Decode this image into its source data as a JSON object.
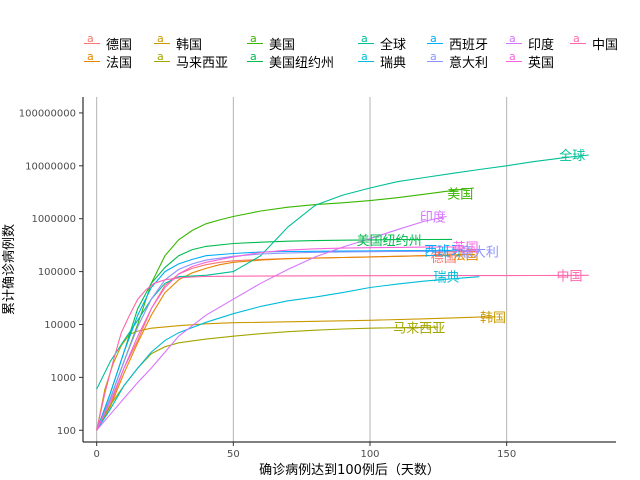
{
  "chart_data": {
    "type": "line",
    "title": "",
    "xlabel": "确诊病例达到100例后（天数）",
    "ylabel": "累计确诊病例数",
    "xlim": [
      -5,
      190
    ],
    "ylim": [
      60,
      200000000
    ],
    "yscale": "log",
    "x_ticks": [
      0,
      50,
      100,
      150
    ],
    "x_tick_labels": [
      "0",
      "50",
      "100",
      "150"
    ],
    "y_ticks": [
      100,
      1000,
      10000,
      100000,
      1000000,
      10000000,
      100000000
    ],
    "y_tick_labels": [
      "100",
      "1000",
      "10000",
      "100000",
      "1000000",
      "10000000",
      "100000000"
    ],
    "grid": "vertical-major",
    "legend_position": "top",
    "series": [
      {
        "name": "德国",
        "color": "#F8766D",
        "label_x": 127,
        "label_y": 190000,
        "points": [
          [
            0,
            100
          ],
          [
            5,
            300
          ],
          [
            10,
            1500
          ],
          [
            15,
            5000
          ],
          [
            20,
            20000
          ],
          [
            25,
            55000
          ],
          [
            30,
            90000
          ],
          [
            35,
            115000
          ],
          [
            40,
            135000
          ],
          [
            45,
            150000
          ],
          [
            50,
            160000
          ],
          [
            60,
            170000
          ],
          [
            70,
            176000
          ],
          [
            80,
            180000
          ],
          [
            90,
            185000
          ],
          [
            100,
            190000
          ],
          [
            110,
            195000
          ],
          [
            120,
            200000
          ],
          [
            127,
            205000
          ]
        ]
      },
      {
        "name": "法国",
        "color": "#E58700",
        "label_x": 135,
        "label_y": 210000,
        "points": [
          [
            0,
            100
          ],
          [
            5,
            280
          ],
          [
            10,
            1200
          ],
          [
            15,
            4500
          ],
          [
            20,
            15000
          ],
          [
            25,
            40000
          ],
          [
            30,
            70000
          ],
          [
            35,
            95000
          ],
          [
            40,
            115000
          ],
          [
            45,
            135000
          ],
          [
            50,
            150000
          ],
          [
            60,
            165000
          ],
          [
            70,
            175000
          ],
          [
            80,
            180000
          ],
          [
            90,
            185000
          ],
          [
            100,
            190000
          ],
          [
            110,
            195000
          ],
          [
            120,
            200000
          ],
          [
            130,
            205000
          ],
          [
            138,
            210000
          ]
        ]
      },
      {
        "name": "韩国",
        "color": "#C99800",
        "label_x": 145,
        "label_y": 14000,
        "points": [
          [
            0,
            100
          ],
          [
            3,
            600
          ],
          [
            6,
            1800
          ],
          [
            9,
            4000
          ],
          [
            12,
            6500
          ],
          [
            15,
            7500
          ],
          [
            20,
            8500
          ],
          [
            30,
            9500
          ],
          [
            40,
            10300
          ],
          [
            50,
            10800
          ],
          [
            60,
            11000
          ],
          [
            80,
            11500
          ],
          [
            100,
            12000
          ],
          [
            120,
            12800
          ],
          [
            140,
            13800
          ],
          [
            146,
            14000
          ]
        ]
      },
      {
        "name": "马来西亚",
        "color": "#A3A500",
        "label_x": 118,
        "label_y": 8800,
        "points": [
          [
            0,
            100
          ],
          [
            5,
            300
          ],
          [
            10,
            700
          ],
          [
            15,
            1500
          ],
          [
            20,
            2800
          ],
          [
            25,
            3800
          ],
          [
            30,
            4500
          ],
          [
            40,
            5300
          ],
          [
            50,
            6000
          ],
          [
            60,
            6700
          ],
          [
            70,
            7300
          ],
          [
            80,
            7800
          ],
          [
            90,
            8200
          ],
          [
            100,
            8500
          ],
          [
            110,
            8700
          ],
          [
            125,
            8900
          ]
        ]
      },
      {
        "name": "美国",
        "color": "#39B600",
        "label_x": 133,
        "label_y": 3000000,
        "points": [
          [
            0,
            100
          ],
          [
            5,
            400
          ],
          [
            10,
            2000
          ],
          [
            15,
            10000
          ],
          [
            20,
            60000
          ],
          [
            25,
            200000
          ],
          [
            30,
            400000
          ],
          [
            35,
            600000
          ],
          [
            40,
            800000
          ],
          [
            45,
            950000
          ],
          [
            50,
            1100000
          ],
          [
            60,
            1400000
          ],
          [
            70,
            1650000
          ],
          [
            80,
            1850000
          ],
          [
            90,
            2000000
          ],
          [
            100,
            2200000
          ],
          [
            110,
            2500000
          ],
          [
            120,
            2900000
          ],
          [
            130,
            3400000
          ],
          [
            138,
            3800000
          ]
        ]
      },
      {
        "name": "美国纽约州",
        "color": "#00BB4E",
        "label_x": 107,
        "label_y": 400000,
        "points": [
          [
            0,
            100
          ],
          [
            5,
            500
          ],
          [
            10,
            3000
          ],
          [
            15,
            20000
          ],
          [
            20,
            60000
          ],
          [
            25,
            120000
          ],
          [
            30,
            200000
          ],
          [
            35,
            260000
          ],
          [
            40,
            300000
          ],
          [
            50,
            340000
          ],
          [
            60,
            360000
          ],
          [
            70,
            375000
          ],
          [
            80,
            385000
          ],
          [
            90,
            392000
          ],
          [
            100,
            398000
          ],
          [
            110,
            402000
          ],
          [
            120,
            405000
          ],
          [
            130,
            407000
          ]
        ]
      },
      {
        "name": "全球",
        "color": "#00BF96",
        "label_x": 174,
        "label_y": 16000000,
        "points": [
          [
            0,
            600
          ],
          [
            5,
            2000
          ],
          [
            10,
            5000
          ],
          [
            15,
            12000
          ],
          [
            20,
            30000
          ],
          [
            25,
            60000
          ],
          [
            30,
            80000
          ],
          [
            40,
            85000
          ],
          [
            50,
            100000
          ],
          [
            60,
            200000
          ],
          [
            70,
            700000
          ],
          [
            80,
            1800000
          ],
          [
            90,
            2800000
          ],
          [
            100,
            3800000
          ],
          [
            110,
            5000000
          ],
          [
            120,
            6000000
          ],
          [
            130,
            7200000
          ],
          [
            140,
            8500000
          ],
          [
            150,
            10000000
          ],
          [
            160,
            12000000
          ],
          [
            170,
            14000000
          ],
          [
            180,
            16000000
          ]
        ]
      },
      {
        "name": "瑞典",
        "color": "#00BCD8",
        "label_x": 128,
        "label_y": 80000,
        "points": [
          [
            0,
            100
          ],
          [
            5,
            250
          ],
          [
            10,
            700
          ],
          [
            15,
            1500
          ],
          [
            20,
            3000
          ],
          [
            25,
            5000
          ],
          [
            30,
            7000
          ],
          [
            40,
            11000
          ],
          [
            50,
            16000
          ],
          [
            60,
            22000
          ],
          [
            70,
            28000
          ],
          [
            80,
            33000
          ],
          [
            90,
            40000
          ],
          [
            100,
            50000
          ],
          [
            110,
            58000
          ],
          [
            120,
            66000
          ],
          [
            130,
            73000
          ],
          [
            140,
            80000
          ]
        ]
      },
      {
        "name": "西班牙",
        "color": "#00ADFA",
        "label_x": 127,
        "label_y": 250000,
        "points": [
          [
            0,
            100
          ],
          [
            5,
            500
          ],
          [
            10,
            3000
          ],
          [
            15,
            15000
          ],
          [
            20,
            50000
          ],
          [
            25,
            100000
          ],
          [
            30,
            140000
          ],
          [
            35,
            170000
          ],
          [
            40,
            200000
          ],
          [
            50,
            220000
          ],
          [
            60,
            235000
          ],
          [
            70,
            240000
          ],
          [
            80,
            242000
          ],
          [
            90,
            244000
          ],
          [
            100,
            246000
          ],
          [
            110,
            248000
          ],
          [
            120,
            250000
          ],
          [
            130,
            252000
          ]
        ]
      },
      {
        "name": "意大利",
        "color": "#8B93FF",
        "label_x": 140,
        "label_y": 240000,
        "points": [
          [
            0,
            100
          ],
          [
            5,
            400
          ],
          [
            10,
            2000
          ],
          [
            15,
            9000
          ],
          [
            20,
            30000
          ],
          [
            25,
            70000
          ],
          [
            30,
            110000
          ],
          [
            35,
            140000
          ],
          [
            40,
            165000
          ],
          [
            50,
            195000
          ],
          [
            60,
            215000
          ],
          [
            70,
            225000
          ],
          [
            80,
            232000
          ],
          [
            90,
            236000
          ],
          [
            100,
            238000
          ],
          [
            110,
            240000
          ],
          [
            120,
            242000
          ],
          [
            130,
            243000
          ],
          [
            140,
            244000
          ]
        ]
      },
      {
        "name": "印度",
        "color": "#D575FE",
        "label_x": 123,
        "label_y": 1100000,
        "points": [
          [
            0,
            100
          ],
          [
            5,
            200
          ],
          [
            10,
            400
          ],
          [
            15,
            800
          ],
          [
            20,
            1500
          ],
          [
            25,
            3000
          ],
          [
            30,
            6000
          ],
          [
            40,
            15000
          ],
          [
            50,
            30000
          ],
          [
            60,
            60000
          ],
          [
            70,
            110000
          ],
          [
            80,
            190000
          ],
          [
            90,
            290000
          ],
          [
            100,
            420000
          ],
          [
            110,
            620000
          ],
          [
            120,
            900000
          ],
          [
            128,
            1100000
          ]
        ]
      },
      {
        "name": "英国",
        "color": "#F962DD",
        "label_x": 135,
        "label_y": 290000,
        "points": [
          [
            0,
            100
          ],
          [
            5,
            350
          ],
          [
            10,
            1500
          ],
          [
            15,
            6000
          ],
          [
            20,
            20000
          ],
          [
            25,
            50000
          ],
          [
            30,
            90000
          ],
          [
            35,
            125000
          ],
          [
            40,
            150000
          ],
          [
            50,
            190000
          ],
          [
            60,
            230000
          ],
          [
            70,
            255000
          ],
          [
            80,
            270000
          ],
          [
            90,
            278000
          ],
          [
            100,
            283000
          ],
          [
            110,
            287000
          ],
          [
            120,
            290000
          ],
          [
            130,
            292000
          ],
          [
            135,
            293000
          ]
        ]
      },
      {
        "name": "中国",
        "color": "#FF65AC",
        "label_x": 173,
        "label_y": 84000,
        "points": [
          [
            0,
            100
          ],
          [
            3,
            500
          ],
          [
            6,
            2000
          ],
          [
            9,
            7000
          ],
          [
            12,
            15000
          ],
          [
            15,
            30000
          ],
          [
            18,
            45000
          ],
          [
            21,
            60000
          ],
          [
            25,
            70000
          ],
          [
            30,
            76000
          ],
          [
            35,
            79000
          ],
          [
            40,
            81000
          ],
          [
            50,
            82000
          ],
          [
            70,
            83000
          ],
          [
            100,
            83500
          ],
          [
            130,
            84000
          ],
          [
            160,
            84500
          ],
          [
            180,
            85000
          ]
        ]
      }
    ]
  }
}
